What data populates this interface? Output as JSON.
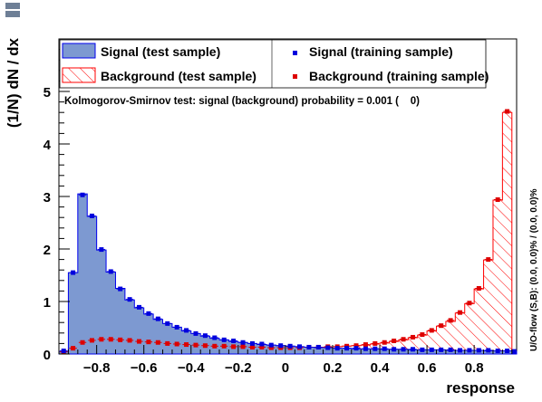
{
  "chart_data": {
    "type": "bar",
    "xlabel": "response",
    "ylabel": "(1/N) dN / dx",
    "xlim": [
      -0.96,
      0.98
    ],
    "ylim": [
      0,
      6
    ],
    "x_ticks": [
      -0.8,
      -0.6,
      -0.4,
      -0.2,
      0,
      0.2,
      0.4,
      0.6,
      0.8
    ],
    "x_tick_labels": [
      "−0.8",
      "−0.6",
      "−0.4",
      "−0.2",
      "0",
      "0.2",
      "0.4",
      "0.6",
      "0.8"
    ],
    "y_ticks": [
      0,
      1,
      2,
      3,
      4,
      5
    ],
    "y_tick_labels": [
      "0",
      "1",
      "2",
      "3",
      "4",
      "5"
    ],
    "bin_edges": [
      -0.96,
      -0.92,
      -0.88,
      -0.84,
      -0.8,
      -0.76,
      -0.72,
      -0.68,
      -0.64,
      -0.6,
      -0.56,
      -0.52,
      -0.48,
      -0.44,
      -0.4,
      -0.36,
      -0.32,
      -0.28,
      -0.24,
      -0.2,
      -0.16,
      -0.12,
      -0.08,
      -0.04,
      0.0,
      0.04,
      0.08,
      0.12,
      0.16,
      0.2,
      0.24,
      0.28,
      0.32,
      0.36,
      0.4,
      0.44,
      0.48,
      0.52,
      0.56,
      0.6,
      0.64,
      0.68,
      0.72,
      0.76,
      0.8,
      0.84,
      0.88,
      0.92,
      0.96,
      0.98
    ],
    "series": [
      {
        "name": "Signal (test sample)",
        "style": "filled",
        "color": "#7d99d1",
        "line_color": "#0000ee",
        "values": [
          0.05,
          1.55,
          3.05,
          2.62,
          1.98,
          1.56,
          1.25,
          1.03,
          0.88,
          0.76,
          0.66,
          0.58,
          0.51,
          0.44,
          0.39,
          0.34,
          0.3,
          0.27,
          0.24,
          0.22,
          0.2,
          0.18,
          0.17,
          0.16,
          0.15,
          0.14,
          0.13,
          0.12,
          0.12,
          0.11,
          0.11,
          0.1,
          0.1,
          0.1,
          0.09,
          0.09,
          0.09,
          0.08,
          0.08,
          0.08,
          0.08,
          0.07,
          0.07,
          0.07,
          0.07,
          0.06,
          0.06,
          0.06,
          0.05
        ]
      },
      {
        "name": "Background (test sample)",
        "style": "hatched",
        "color": "#ff0000",
        "values": [
          0.03,
          0.1,
          0.21,
          0.25,
          0.27,
          0.27,
          0.26,
          0.25,
          0.24,
          0.22,
          0.21,
          0.2,
          0.19,
          0.18,
          0.17,
          0.16,
          0.15,
          0.14,
          0.14,
          0.13,
          0.13,
          0.12,
          0.12,
          0.12,
          0.12,
          0.12,
          0.12,
          0.13,
          0.13,
          0.14,
          0.15,
          0.16,
          0.17,
          0.19,
          0.21,
          0.24,
          0.27,
          0.31,
          0.36,
          0.44,
          0.53,
          0.62,
          0.78,
          0.96,
          1.24,
          1.79,
          2.93,
          4.6,
          0.0
        ]
      },
      {
        "name": "Signal (training sample)",
        "style": "markers",
        "color": "#0000dd",
        "values": [
          0.06,
          1.55,
          3.03,
          2.63,
          1.99,
          1.57,
          1.24,
          1.04,
          0.89,
          0.77,
          0.67,
          0.58,
          0.51,
          0.45,
          0.39,
          0.35,
          0.31,
          0.27,
          0.25,
          0.22,
          0.2,
          0.19,
          0.17,
          0.16,
          0.15,
          0.14,
          0.13,
          0.13,
          0.12,
          0.11,
          0.11,
          0.11,
          0.1,
          0.1,
          0.1,
          0.09,
          0.09,
          0.09,
          0.08,
          0.08,
          0.08,
          0.08,
          0.07,
          0.07,
          0.07,
          0.07,
          0.06,
          0.06,
          0.05
        ]
      },
      {
        "name": "Background (training sample)",
        "style": "markers",
        "color": "#dd0000",
        "values": [
          0.04,
          0.11,
          0.22,
          0.26,
          0.28,
          0.28,
          0.27,
          0.26,
          0.24,
          0.23,
          0.22,
          0.2,
          0.19,
          0.18,
          0.17,
          0.16,
          0.15,
          0.15,
          0.14,
          0.14,
          0.13,
          0.13,
          0.12,
          0.12,
          0.12,
          0.12,
          0.13,
          0.13,
          0.14,
          0.14,
          0.15,
          0.16,
          0.18,
          0.2,
          0.22,
          0.25,
          0.28,
          0.32,
          0.37,
          0.45,
          0.54,
          0.64,
          0.79,
          0.97,
          1.25,
          1.8,
          2.94,
          4.62,
          0.0
        ]
      }
    ],
    "legend": {
      "placement": "top",
      "entries": [
        {
          "label": "Signal (test sample)",
          "kind": "filled"
        },
        {
          "label": "Signal (training sample)",
          "kind": "blue-marker"
        },
        {
          "label": "Background (test sample)",
          "kind": "hatched"
        },
        {
          "label": "Background (training sample)",
          "kind": "red-marker"
        }
      ]
    },
    "annotations": {
      "ks_test": "Kolmogorov-Smirnov test: signal (background) probability = 0.001 (    0)",
      "overflow": "U/O-flow (S,B): (0.0, 0.0)% / (0.0, 0.0)%"
    }
  }
}
